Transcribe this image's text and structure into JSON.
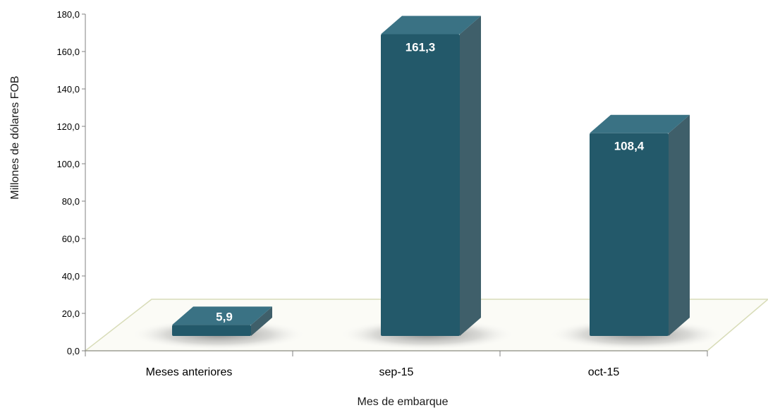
{
  "chart_data": {
    "type": "bar",
    "categories": [
      "Meses anteriores",
      "sep-15",
      "oct-15"
    ],
    "values": [
      5.9,
      161.3,
      108.4
    ],
    "data_labels": [
      "5,9",
      "161,3",
      "108,4"
    ],
    "title": "",
    "xlabel": "Mes de embarque",
    "ylabel": "Millones de dólares FOB",
    "ylim": [
      0,
      180
    ],
    "yticks": [
      0,
      20,
      40,
      60,
      80,
      100,
      120,
      140,
      160,
      180
    ],
    "ytick_labels": [
      "0,0",
      "20,0",
      "40,0",
      "60,0",
      "80,0",
      "100,0",
      "120,0",
      "140,0",
      "160,0",
      "180,0"
    ],
    "grid": false,
    "legend": "none",
    "style": "3d-column",
    "colors": {
      "bar_front": "#23596a",
      "bar_side": "#3f5f6a",
      "bar_top": "#3a7284",
      "floor_edge": "#d8dcb8",
      "axis": "#808080"
    }
  }
}
